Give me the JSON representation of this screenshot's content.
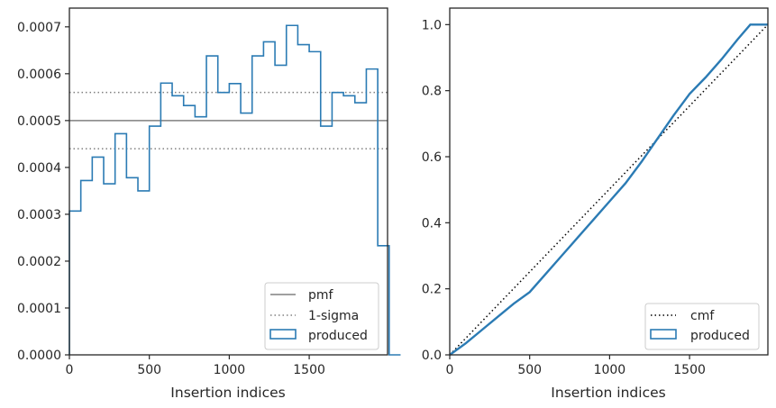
{
  "colors": {
    "produced": "#2b7bb4",
    "pmf": "#808080",
    "sigma": "#808080",
    "cmf": "#000000",
    "axis": "#262626"
  },
  "chart_data": [
    {
      "type": "histogram",
      "xlabel": "Insertion indices",
      "ylabel": "",
      "xlim": [
        0,
        1990
      ],
      "ylim": [
        0,
        0.00074
      ],
      "xticks": [
        0,
        500,
        1000,
        1500
      ],
      "yticks": [
        0,
        0.0001,
        0.0002,
        0.0003,
        0.0004,
        0.0005,
        0.0006,
        0.0007
      ],
      "xtick_labels": [
        "0",
        "500",
        "1000",
        "1500"
      ],
      "ytick_labels": [
        "0.0000",
        "0.0001",
        "0.0002",
        "0.0003",
        "0.0004",
        "0.0005",
        "0.0006",
        "0.0007"
      ],
      "grid": false,
      "legend_position": "lower right",
      "legend": [
        "pmf",
        "1-sigma",
        "produced"
      ],
      "bin_width": 71.43,
      "bin_edges_start": 0,
      "produced": [
        0.000307,
        0.000372,
        0.000422,
        0.000365,
        0.000472,
        0.000378,
        0.00035,
        0.000488,
        0.00058,
        0.000553,
        0.000532,
        0.000508,
        0.000638,
        0.00056,
        0.000579,
        0.000516,
        0.000638,
        0.000668,
        0.000618,
        0.000703,
        0.000662,
        0.000647,
        0.000488,
        0.00056,
        0.000553,
        0.000538,
        0.00061,
        0.000233,
        0
      ],
      "pmf": 0.0005,
      "sigma_upper": 0.00056,
      "sigma_lower": 0.00044
    },
    {
      "type": "line",
      "xlabel": "Insertion indices",
      "ylabel": "",
      "xlim": [
        0,
        1990
      ],
      "ylim": [
        0,
        1.05
      ],
      "xticks": [
        0,
        500,
        1000,
        1500
      ],
      "yticks": [
        0,
        0.2,
        0.4,
        0.6,
        0.8,
        1.0
      ],
      "xtick_labels": [
        "0",
        "500",
        "1000",
        "1500"
      ],
      "ytick_labels": [
        "0.0",
        "0.2",
        "0.4",
        "0.6",
        "0.8",
        "1.0"
      ],
      "grid": false,
      "legend_position": "lower right",
      "legend": [
        "cmf",
        "produced"
      ],
      "cmf": {
        "x": [
          0,
          1990
        ],
        "y": [
          0,
          1.0
        ]
      },
      "produced": {
        "x": [
          0,
          100,
          200,
          300,
          400,
          500,
          600,
          700,
          800,
          900,
          1000,
          1100,
          1200,
          1300,
          1400,
          1500,
          1600,
          1700,
          1800,
          1880,
          1990
        ],
        "y": [
          0,
          0.035,
          0.075,
          0.115,
          0.155,
          0.19,
          0.245,
          0.3,
          0.355,
          0.41,
          0.465,
          0.52,
          0.585,
          0.655,
          0.725,
          0.79,
          0.84,
          0.895,
          0.955,
          1.0,
          1.0
        ]
      }
    }
  ]
}
